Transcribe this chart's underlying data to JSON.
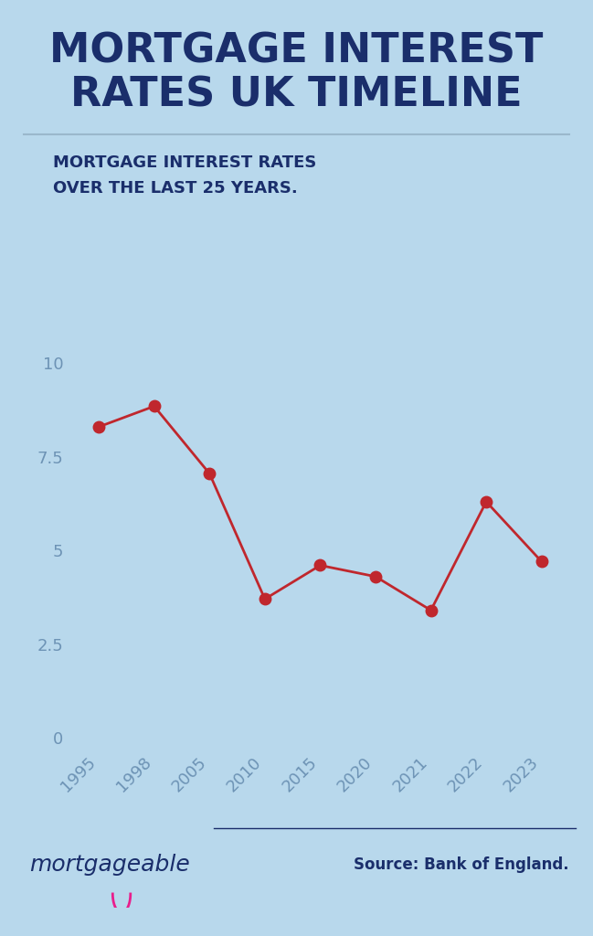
{
  "title_line1": "MORTGAGE INTEREST",
  "title_line2": "RATES UK TIMELINE",
  "subtitle_line1": "MORTGAGE INTEREST RATES",
  "subtitle_line2": "OVER THE LAST 25 YEARS.",
  "years": [
    "1995",
    "1998",
    "2005",
    "2010",
    "2015",
    "2020",
    "2021",
    "2022",
    "2023"
  ],
  "rates": [
    8.3,
    8.85,
    7.05,
    3.7,
    4.6,
    4.3,
    3.4,
    6.3,
    4.7
  ],
  "line_color": "#c0272d",
  "marker_color": "#c0272d",
  "background_color": "#b8d8ec",
  "title_color": "#1a2e6b",
  "subtitle_color": "#1a2e6b",
  "tick_color": "#6d93b5",
  "yticks": [
    0,
    2.5,
    5,
    7.5,
    10
  ],
  "ytick_labels": [
    "0",
    "2.5",
    "5",
    "7.5",
    "10"
  ],
  "ylim": [
    -0.3,
    11.2
  ],
  "source_text": "Source: Bank of England.",
  "brand_text": "mortgageable",
  "brand_smile_color": "#e91e8c",
  "divider_color": "#9ab8cc",
  "footer_divider_color": "#1a2e6b",
  "title_fontsize": 32,
  "subtitle_fontsize": 13,
  "tick_fontsize": 13
}
